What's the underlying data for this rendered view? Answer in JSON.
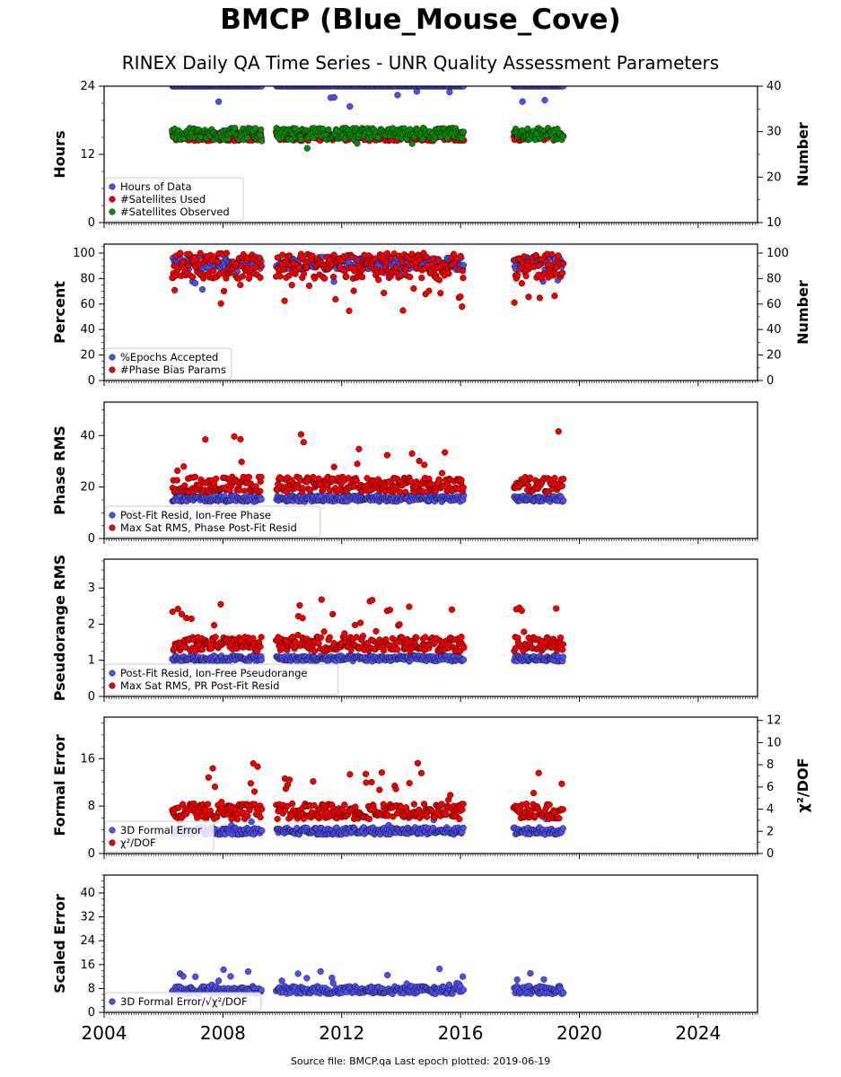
{
  "header": {
    "title": "BMCP (Blue_Mouse_Cove)",
    "subtitle": "RINEX Daily QA Time Series - UNR Quality Assessment Parameters"
  },
  "footer": {
    "source": "Source file: BMCP.qa Last epoch plotted: 2019-06-19"
  },
  "colors": {
    "blue": "#4f4ff0",
    "red": "#ee0000",
    "green": "#0a8a0a",
    "edge": "#000000"
  },
  "chart_data": [
    {
      "id": "hours",
      "type": "scatter",
      "xlim": [
        2004.0,
        2026.0
      ],
      "ylim": [
        0,
        24
      ],
      "yticks": [
        0,
        12,
        24
      ],
      "ylabel": "Hours",
      "y2lim": [
        10,
        40
      ],
      "y2ticks": [
        10,
        20,
        30,
        40
      ],
      "y2label": "Number",
      "legend": "lower-left",
      "series": [
        {
          "name": "Hours of Data",
          "color": "blue",
          "axis": "left",
          "base": 24,
          "spread": 0,
          "spike": -3,
          "spike_rate": 0.03
        },
        {
          "name": "#Satellites Used",
          "color": "red",
          "axis": "right",
          "base": 29,
          "spread": 1.0,
          "spike": 0,
          "spike_rate": 0
        },
        {
          "name": "#Satellites Observed",
          "color": "green",
          "axis": "right",
          "base": 29.5,
          "spread": 1.3,
          "spike": -2,
          "spike_rate": 0.02
        }
      ]
    },
    {
      "id": "percent",
      "type": "scatter",
      "xlim": [
        2004.0,
        2026.0
      ],
      "ylim": [
        0,
        107
      ],
      "yticks": [
        0,
        20,
        40,
        60,
        80,
        100
      ],
      "ylabel": "Percent",
      "y2lim": [
        0,
        107
      ],
      "y2ticks": [
        0,
        20,
        40,
        60,
        80,
        100
      ],
      "y2label": "Number",
      "legend": "lower-left",
      "series": [
        {
          "name": "%Epochs Accepted",
          "color": "blue",
          "axis": "left",
          "base": 92,
          "spread": 5,
          "spike": -15,
          "spike_rate": 0.04
        },
        {
          "name": "#Phase Bias Params",
          "color": "red",
          "axis": "right",
          "base": 90,
          "spread": 10,
          "spike": -25,
          "spike_rate": 0.06
        }
      ]
    },
    {
      "id": "phase-rms",
      "type": "scatter",
      "xlim": [
        2004.0,
        2026.0
      ],
      "ylim": [
        0,
        53
      ],
      "yticks": [
        0,
        20,
        40
      ],
      "ylabel": "Phase RMS",
      "legend": "lower-left",
      "series": [
        {
          "name": "Post-Fit Resid, Ion-Free Phase",
          "color": "blue",
          "axis": "left",
          "base": 15.5,
          "spread": 1.2,
          "spike": 0,
          "spike_rate": 0
        },
        {
          "name": "Max Sat RMS, Phase Post-Fit Resid",
          "color": "red",
          "axis": "left",
          "base": 21,
          "spread": 3,
          "spike": 14,
          "spike_rate": 0.05
        }
      ]
    },
    {
      "id": "pseudorange-rms",
      "type": "scatter",
      "xlim": [
        2004.0,
        2026.0
      ],
      "ylim": [
        0,
        3.8
      ],
      "yticks": [
        0,
        1,
        2,
        3
      ],
      "ylabel": "Pseudorange RMS",
      "legend": "lower-left",
      "series": [
        {
          "name": "Post-Fit Resid, Ion-Free Pseudorange",
          "color": "blue",
          "axis": "left",
          "base": 1.05,
          "spread": 0.08,
          "spike": 0,
          "spike_rate": 0
        },
        {
          "name": "Max Sat RMS, PR Post-Fit Resid",
          "color": "red",
          "axis": "left",
          "base": 1.45,
          "spread": 0.2,
          "spike": 0.9,
          "spike_rate": 0.05
        }
      ]
    },
    {
      "id": "formal-error",
      "type": "scatter",
      "xlim": [
        2004.0,
        2026.0
      ],
      "ylim": [
        0,
        23
      ],
      "yticks": [
        0,
        8,
        16
      ],
      "ylabel": "Formal Error",
      "y2lim": [
        0,
        12.3
      ],
      "y2ticks": [
        0,
        2,
        4,
        6,
        8,
        10,
        12
      ],
      "y2label": "χ²/DOF",
      "legend": "lower-left",
      "series": [
        {
          "name": "3D Formal Error",
          "color": "blue",
          "axis": "left",
          "base": 3.8,
          "spread": 0.6,
          "spike": 2,
          "spike_rate": 0.02
        },
        {
          "name": "χ²/DOF",
          "color": "red",
          "axis": "right",
          "base": 3.8,
          "spread": 0.7,
          "spike": 3,
          "spike_rate": 0.06
        }
      ]
    },
    {
      "id": "scaled-error",
      "type": "scatter",
      "xlim": [
        2004.0,
        2026.0
      ],
      "ylim": [
        0,
        46
      ],
      "yticks": [
        0,
        8,
        16,
        24,
        32,
        40
      ],
      "ylabel": "Scaled Error",
      "legend": "lower-left",
      "series": [
        {
          "name": "3D Formal Error/√χ²/DOF",
          "color": "blue",
          "axis": "left",
          "base": 7.5,
          "spread": 1.3,
          "spike": 6,
          "spike_rate": 0.05
        }
      ]
    }
  ],
  "x_axis": {
    "ticks": [
      2004,
      2008,
      2012,
      2016,
      2020,
      2024
    ],
    "data_segments": [
      [
        2006.3,
        2009.3
      ],
      [
        2009.8,
        2016.1
      ],
      [
        2017.8,
        2019.46
      ]
    ]
  }
}
